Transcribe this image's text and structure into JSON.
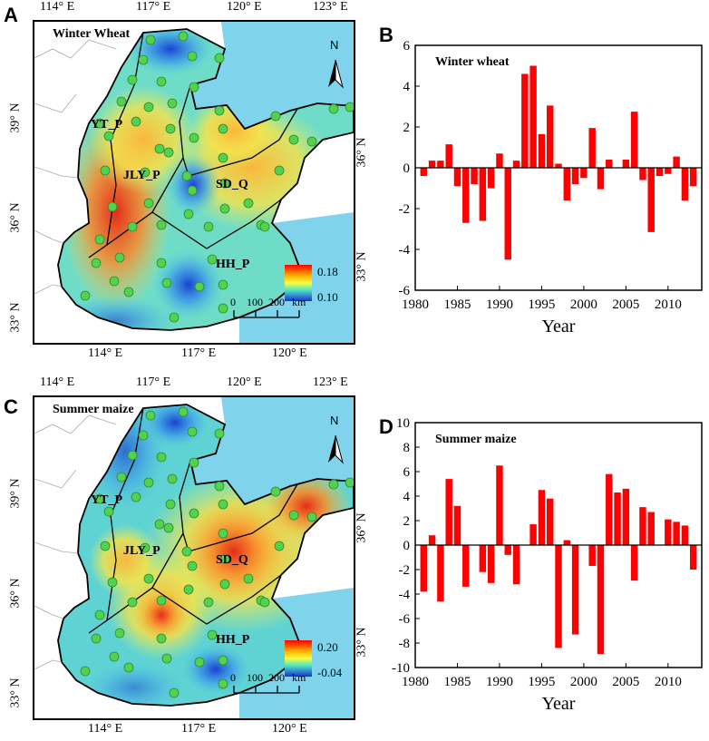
{
  "panels": {
    "a": {
      "letter": "A"
    },
    "b": {
      "letter": "B"
    },
    "c": {
      "letter": "C"
    },
    "d": {
      "letter": "D"
    }
  },
  "maps": [
    {
      "id": "wheat",
      "title": "Winter Wheat",
      "lon_top": [
        "114° E",
        "117° E",
        "120° E",
        "123° E"
      ],
      "lon_bottom": [
        "114° E",
        "117° E",
        "120° E"
      ],
      "lat_left": [
        "39° N",
        "36° N",
        "33° N"
      ],
      "lat_right": [
        "36° N",
        "33° N"
      ],
      "regions": [
        "YT_P",
        "JLY_P",
        "SD_Q",
        "HH_P"
      ],
      "legend_max": "0.18",
      "legend_min": "0.10",
      "scale": [
        "0",
        "100",
        "200",
        "km"
      ],
      "north": "N",
      "colors": {
        "water": "#7fd3ea",
        "station": "#52d24f"
      }
    },
    {
      "id": "maize",
      "title": "Summer maize",
      "lon_top": [
        "114° E",
        "117° E",
        "120° E",
        "123° E"
      ],
      "lon_bottom": [
        "114° E",
        "117° E",
        "120° E"
      ],
      "lat_left": [
        "39° N",
        "36° N",
        "33° N"
      ],
      "lat_right": [
        "36° N",
        "33° N"
      ],
      "regions": [
        "YT_P",
        "JLY_P",
        "SD_Q",
        "HH_P"
      ],
      "legend_max": "0.20",
      "legend_min": "-0.04",
      "scale": [
        "0",
        "100",
        "200",
        "km"
      ],
      "north": "N",
      "colors": {
        "water": "#7fd3ea",
        "station": "#52d24f"
      }
    }
  ],
  "chart_data": [
    {
      "id": "B",
      "type": "bar",
      "title": "Winter wheat",
      "xlabel": "Year",
      "ylabel": "",
      "ylim": [
        -6,
        6
      ],
      "yticks": [
        -6,
        -4,
        -2,
        0,
        2,
        4,
        6
      ],
      "xticks": [
        1980,
        1985,
        1990,
        1995,
        2000,
        2005,
        2010
      ],
      "xlim": [
        1980,
        2014
      ],
      "bar_color": "#ff0000",
      "x": [
        1981,
        1982,
        1983,
        1984,
        1985,
        1986,
        1987,
        1988,
        1989,
        1990,
        1991,
        1992,
        1993,
        1994,
        1995,
        1996,
        1997,
        1998,
        1999,
        2000,
        2001,
        2002,
        2003,
        2004,
        2005,
        2006,
        2007,
        2008,
        2009,
        2010,
        2011,
        2012,
        2013
      ],
      "values": [
        -0.4,
        0.35,
        0.35,
        1.15,
        -0.9,
        -2.7,
        -0.8,
        -2.6,
        -1.0,
        0.7,
        -4.5,
        0.35,
        4.6,
        5.0,
        1.65,
        3.05,
        0.2,
        -1.6,
        -0.8,
        -0.5,
        1.95,
        -1.05,
        0.4,
        0,
        0.4,
        2.75,
        -0.6,
        -3.15,
        -0.4,
        -0.3,
        0.55,
        -1.6,
        -0.9
      ]
    },
    {
      "id": "D",
      "type": "bar",
      "title": "Summer maize",
      "xlabel": "Year",
      "ylabel": "",
      "ylim": [
        -10,
        10
      ],
      "yticks": [
        -10,
        -8,
        -6,
        -4,
        -2,
        0,
        2,
        4,
        6,
        8,
        10
      ],
      "xticks": [
        1980,
        1985,
        1990,
        1995,
        2000,
        2005,
        2010
      ],
      "xlim": [
        1980,
        2014
      ],
      "bar_color": "#ff0000",
      "x": [
        1981,
        1982,
        1983,
        1984,
        1985,
        1986,
        1987,
        1988,
        1989,
        1990,
        1991,
        1992,
        1993,
        1994,
        1995,
        1996,
        1997,
        1998,
        1999,
        2000,
        2001,
        2002,
        2003,
        2004,
        2005,
        2006,
        2007,
        2008,
        2009,
        2010,
        2011,
        2012,
        2013
      ],
      "values": [
        -3.8,
        0.8,
        -4.6,
        5.4,
        3.2,
        -3.4,
        0,
        -2.2,
        -3.1,
        6.5,
        -0.8,
        -3.2,
        0,
        1.7,
        4.5,
        3.8,
        -8.4,
        0.4,
        -7.3,
        0,
        -1.7,
        -8.9,
        5.8,
        4.3,
        4.6,
        -2.9,
        3.1,
        2.7,
        0,
        2.1,
        1.9,
        1.6,
        -2.0
      ]
    }
  ]
}
